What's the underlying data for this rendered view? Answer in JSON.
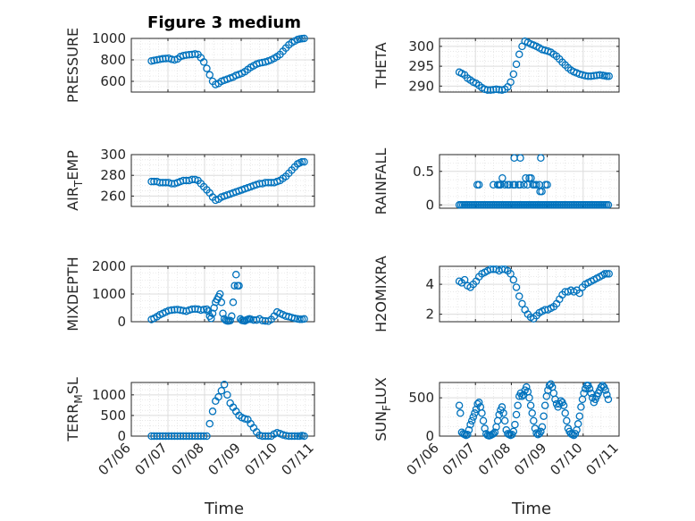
{
  "figure_title": "Figure 3 medium",
  "xlabel": "Time",
  "x_ticks": [
    "07/06",
    "07/07",
    "07/08",
    "07/09",
    "07/10",
    "07/11"
  ],
  "marker_color": "#0072BD",
  "chart_data": [
    {
      "type": "scatter",
      "ylabel": "PRESSURE",
      "ylabel_sub": "",
      "ylabel_rest": "",
      "ylim": [
        500,
        1000
      ],
      "yticks": [
        600,
        800,
        1000
      ],
      "xlim": [
        0,
        5
      ],
      "grid": true,
      "x": [
        0.55,
        0.62,
        0.7,
        0.78,
        0.86,
        0.94,
        1.02,
        1.1,
        1.18,
        1.26,
        1.34,
        1.42,
        1.5,
        1.58,
        1.66,
        1.74,
        1.82,
        1.9,
        1.98,
        2.06,
        2.14,
        2.22,
        2.3,
        2.38,
        2.46,
        2.54,
        2.62,
        2.7,
        2.78,
        2.86,
        2.94,
        3.02,
        3.1,
        3.18,
        3.26,
        3.34,
        3.42,
        3.5,
        3.58,
        3.66,
        3.74,
        3.82,
        3.9,
        3.98,
        4.06,
        4.14,
        4.22,
        4.3,
        4.38,
        4.46,
        4.54,
        4.6,
        4.66,
        4.72
      ],
      "y": [
        790,
        795,
        800,
        805,
        810,
        812,
        815,
        805,
        800,
        808,
        830,
        840,
        845,
        848,
        850,
        855,
        850,
        820,
        780,
        720,
        660,
        600,
        570,
        580,
        600,
        610,
        620,
        630,
        640,
        655,
        665,
        675,
        690,
        710,
        730,
        745,
        760,
        770,
        775,
        780,
        790,
        800,
        815,
        830,
        850,
        880,
        910,
        940,
        960,
        975,
        990,
        995,
        998,
        1000
      ]
    },
    {
      "type": "scatter",
      "ylabel": "THETA",
      "ylabel_sub": "",
      "ylabel_rest": "",
      "ylim": [
        288.5,
        302
      ],
      "yticks": [
        290,
        295,
        300
      ],
      "xlim": [
        0,
        5
      ],
      "grid": true,
      "x": [
        0.55,
        0.62,
        0.7,
        0.78,
        0.86,
        0.94,
        1.02,
        1.1,
        1.18,
        1.26,
        1.34,
        1.42,
        1.5,
        1.58,
        1.66,
        1.74,
        1.82,
        1.9,
        1.98,
        2.06,
        2.14,
        2.22,
        2.3,
        2.38,
        2.46,
        2.54,
        2.62,
        2.7,
        2.78,
        2.86,
        2.94,
        3.02,
        3.1,
        3.18,
        3.26,
        3.34,
        3.42,
        3.5,
        3.58,
        3.66,
        3.74,
        3.82,
        3.9,
        3.98,
        4.06,
        4.14,
        4.22,
        4.3,
        4.38,
        4.46,
        4.54,
        4.6,
        4.66,
        4.72
      ],
      "y": [
        293.5,
        293.2,
        292.8,
        292.0,
        291.5,
        291.0,
        290.7,
        290.2,
        289.6,
        289.2,
        289.0,
        289.0,
        289.1,
        289.2,
        289.1,
        289.0,
        289.2,
        289.8,
        291.0,
        293.0,
        295.5,
        298.0,
        300.0,
        301.3,
        301.0,
        300.6,
        300.3,
        300.0,
        299.6,
        299.2,
        299.0,
        298.8,
        298.5,
        298.0,
        297.5,
        296.8,
        296.0,
        295.3,
        294.6,
        294.0,
        293.6,
        293.3,
        293.0,
        292.8,
        292.6,
        292.5,
        292.5,
        292.6,
        292.7,
        292.8,
        292.7,
        292.6,
        292.5,
        292.5
      ]
    },
    {
      "type": "scatter",
      "ylabel": "AIR",
      "ylabel_sub": "T",
      "ylabel_rest": "EMP",
      "ylim": [
        250,
        300
      ],
      "yticks": [
        260,
        280,
        300
      ],
      "xlim": [
        0,
        5
      ],
      "grid": true,
      "x": [
        0.55,
        0.62,
        0.7,
        0.78,
        0.86,
        0.94,
        1.02,
        1.1,
        1.18,
        1.26,
        1.34,
        1.42,
        1.5,
        1.58,
        1.66,
        1.74,
        1.82,
        1.9,
        1.98,
        2.06,
        2.14,
        2.22,
        2.3,
        2.38,
        2.46,
        2.54,
        2.62,
        2.7,
        2.78,
        2.86,
        2.94,
        3.02,
        3.1,
        3.18,
        3.26,
        3.34,
        3.42,
        3.5,
        3.58,
        3.66,
        3.74,
        3.82,
        3.9,
        3.98,
        4.06,
        4.14,
        4.22,
        4.3,
        4.38,
        4.46,
        4.54,
        4.6,
        4.66,
        4.72
      ],
      "y": [
        274,
        274,
        274,
        273,
        273,
        273,
        273,
        272,
        272,
        273,
        274,
        275,
        275,
        275,
        276,
        276,
        275,
        272,
        269,
        266,
        263,
        259,
        256,
        257,
        259,
        260,
        261,
        262,
        263,
        264,
        265,
        266,
        267,
        268,
        269,
        270,
        271,
        272,
        272,
        273,
        273,
        273,
        273,
        274,
        275,
        277,
        279,
        282,
        285,
        288,
        291,
        292,
        293,
        293
      ]
    },
    {
      "type": "scatter",
      "ylabel": "RAINFALL",
      "ylabel_sub": "",
      "ylabel_rest": "",
      "ylim": [
        -0.05,
        0.75
      ],
      "yticks": [
        0,
        0.5
      ],
      "xlim": [
        0,
        5
      ],
      "grid": true,
      "x": [
        0.55,
        0.6,
        0.65,
        0.7,
        0.75,
        0.8,
        0.85,
        0.9,
        0.95,
        1.0,
        1.05,
        1.1,
        1.15,
        1.2,
        1.25,
        1.3,
        1.35,
        1.4,
        1.45,
        1.5,
        1.55,
        1.6,
        1.65,
        1.7,
        1.75,
        1.8,
        1.85,
        1.9,
        1.95,
        2.0,
        2.05,
        2.1,
        2.15,
        2.2,
        2.25,
        2.3,
        2.35,
        2.4,
        2.45,
        2.5,
        2.55,
        2.6,
        2.65,
        2.7,
        2.75,
        2.8,
        2.85,
        2.9,
        2.95,
        3.0,
        3.05,
        3.1,
        3.15,
        3.2,
        3.25,
        3.3,
        3.35,
        3.4,
        3.45,
        3.5,
        3.55,
        3.6,
        3.65,
        3.7,
        3.75,
        3.8,
        3.85,
        3.9,
        3.95,
        4.0,
        4.05,
        4.1,
        4.15,
        4.2,
        4.25,
        4.3,
        4.35,
        4.4,
        4.45,
        4.5,
        4.55,
        4.6,
        4.65,
        4.7,
        1.05,
        1.1,
        1.5,
        1.62,
        1.66,
        1.7,
        1.75,
        1.82,
        1.9,
        1.95,
        2.05,
        2.1,
        2.2,
        2.25,
        2.35,
        2.45,
        2.5,
        2.55,
        2.6,
        2.65,
        2.7,
        2.78,
        2.8,
        2.85,
        2.95,
        3.0,
        2.08,
        2.25,
        2.82,
        1.7,
        2.4
      ],
      "y": [
        0,
        0,
        0,
        0,
        0,
        0,
        0,
        0,
        0,
        0,
        0,
        0,
        0,
        0,
        0,
        0,
        0,
        0,
        0,
        0,
        0,
        0,
        0,
        0,
        0,
        0,
        0,
        0,
        0,
        0,
        0,
        0,
        0,
        0,
        0,
        0,
        0,
        0,
        0,
        0,
        0,
        0,
        0,
        0,
        0,
        0,
        0,
        0,
        0,
        0,
        0,
        0,
        0,
        0,
        0,
        0,
        0,
        0,
        0,
        0,
        0,
        0,
        0,
        0,
        0,
        0,
        0,
        0,
        0,
        0,
        0,
        0,
        0,
        0,
        0,
        0,
        0,
        0,
        0,
        0,
        0,
        0,
        0,
        0,
        0.3,
        0.3,
        0.3,
        0.3,
        0.3,
        0.3,
        0.4,
        0.3,
        0.3,
        0.3,
        0.3,
        0.3,
        0.3,
        0.3,
        0.3,
        0.3,
        0.4,
        0.4,
        0.3,
        0.3,
        0.3,
        0.3,
        0.2,
        0.2,
        0.3,
        0.3,
        0.7,
        0.7,
        0.7,
        0.3,
        0.4
      ]
    },
    {
      "type": "scatter",
      "ylabel": "MIXDEPTH",
      "ylabel_sub": "",
      "ylabel_rest": "",
      "ylim": [
        0,
        2000
      ],
      "yticks": [
        0,
        1000,
        2000
      ],
      "xlim": [
        0,
        5
      ],
      "grid": true,
      "x": [
        0.55,
        0.62,
        0.7,
        0.78,
        0.86,
        0.94,
        1.02,
        1.1,
        1.18,
        1.26,
        1.34,
        1.42,
        1.5,
        1.58,
        1.66,
        1.74,
        1.82,
        1.9,
        1.98,
        2.06,
        2.1,
        2.14,
        2.18,
        2.22,
        2.26,
        2.3,
        2.34,
        2.38,
        2.42,
        2.46,
        2.5,
        2.54,
        2.58,
        2.62,
        2.66,
        2.7,
        2.74,
        2.78,
        2.82,
        2.86,
        2.9,
        2.94,
        2.98,
        3.02,
        3.06,
        3.1,
        3.14,
        3.18,
        3.22,
        3.26,
        3.34,
        3.42,
        3.5,
        3.58,
        3.66,
        3.74,
        3.82,
        3.9,
        3.98,
        4.06,
        4.14,
        4.22,
        4.3,
        4.38,
        4.46,
        4.54,
        4.6,
        4.66,
        4.72
      ],
      "y": [
        80,
        120,
        180,
        250,
        300,
        350,
        400,
        420,
        430,
        440,
        420,
        400,
        380,
        420,
        450,
        460,
        450,
        420,
        440,
        450,
        380,
        200,
        120,
        300,
        500,
        700,
        800,
        900,
        1000,
        700,
        300,
        100,
        50,
        30,
        30,
        40,
        200,
        700,
        1300,
        1700,
        1300,
        1300,
        100,
        50,
        40,
        30,
        60,
        80,
        100,
        90,
        60,
        60,
        100,
        40,
        30,
        20,
        80,
        200,
        350,
        300,
        250,
        200,
        180,
        150,
        120,
        100,
        90,
        90,
        100
      ]
    },
    {
      "type": "scatter",
      "ylabel": "H2OMIXRA",
      "ylabel_sub": "",
      "ylabel_rest": "",
      "ylim": [
        1.5,
        5.2
      ],
      "yticks": [
        2,
        4
      ],
      "xlim": [
        0,
        5
      ],
      "grid": true,
      "x": [
        0.55,
        0.62,
        0.7,
        0.78,
        0.86,
        0.94,
        1.02,
        1.1,
        1.18,
        1.26,
        1.34,
        1.42,
        1.5,
        1.58,
        1.66,
        1.74,
        1.82,
        1.9,
        1.98,
        2.06,
        2.14,
        2.22,
        2.3,
        2.38,
        2.46,
        2.54,
        2.62,
        2.7,
        2.78,
        2.86,
        2.94,
        3.02,
        3.1,
        3.18,
        3.26,
        3.34,
        3.42,
        3.5,
        3.58,
        3.66,
        3.74,
        3.82,
        3.9,
        3.98,
        4.06,
        4.14,
        4.22,
        4.3,
        4.38,
        4.46,
        4.54,
        4.6,
        4.66,
        4.72
      ],
      "y": [
        4.2,
        4.1,
        4.3,
        3.9,
        3.8,
        4.0,
        4.2,
        4.5,
        4.7,
        4.8,
        4.9,
        5.0,
        5.0,
        5.0,
        4.9,
        5.0,
        5.0,
        4.9,
        4.7,
        4.3,
        3.8,
        3.2,
        2.7,
        2.3,
        2.0,
        1.8,
        1.7,
        1.9,
        2.1,
        2.2,
        2.3,
        2.3,
        2.4,
        2.5,
        2.7,
        3.0,
        3.3,
        3.5,
        3.5,
        3.6,
        3.5,
        3.6,
        3.4,
        3.8,
        4.0,
        4.1,
        4.2,
        4.3,
        4.4,
        4.5,
        4.6,
        4.7,
        4.7,
        4.7
      ]
    },
    {
      "type": "scatter",
      "ylabel": "TERR",
      "ylabel_sub": "M",
      "ylabel_rest": "SL",
      "ylim": [
        0,
        1300
      ],
      "yticks": [
        0,
        500,
        1000
      ],
      "xlim": [
        0,
        5
      ],
      "grid": true,
      "x": [
        0.55,
        0.62,
        0.7,
        0.78,
        0.86,
        0.94,
        1.02,
        1.1,
        1.18,
        1.26,
        1.34,
        1.42,
        1.5,
        1.58,
        1.66,
        1.74,
        1.82,
        1.9,
        1.98,
        2.06,
        2.14,
        2.22,
        2.3,
        2.38,
        2.46,
        2.54,
        2.62,
        2.7,
        2.78,
        2.86,
        2.94,
        3.02,
        3.1,
        3.18,
        3.26,
        3.34,
        3.42,
        3.5,
        3.58,
        3.66,
        3.74,
        3.82,
        3.9,
        3.98,
        4.06,
        4.14,
        4.22,
        4.3,
        4.38,
        4.46,
        4.54,
        4.6,
        4.66,
        4.72
      ],
      "y": [
        0,
        0,
        0,
        0,
        0,
        0,
        0,
        0,
        0,
        0,
        0,
        0,
        0,
        0,
        0,
        0,
        0,
        0,
        0,
        0,
        300,
        600,
        850,
        950,
        1100,
        1250,
        1000,
        800,
        700,
        600,
        500,
        450,
        420,
        400,
        300,
        200,
        100,
        20,
        0,
        0,
        0,
        0,
        50,
        80,
        60,
        30,
        10,
        0,
        0,
        0,
        0,
        0,
        10,
        0
      ]
    },
    {
      "type": "scatter",
      "ylabel": "SUN",
      "ylabel_sub": "F",
      "ylabel_rest": "LUX",
      "ylim": [
        0,
        700
      ],
      "yticks": [
        0,
        500
      ],
      "xlim": [
        0,
        5
      ],
      "grid": true,
      "x": [
        0.55,
        0.58,
        0.62,
        0.66,
        0.7,
        0.74,
        0.78,
        0.82,
        0.86,
        0.9,
        0.94,
        0.98,
        1.02,
        1.06,
        1.1,
        1.14,
        1.18,
        1.22,
        1.26,
        1.3,
        1.34,
        1.38,
        1.42,
        1.46,
        1.5,
        1.54,
        1.58,
        1.62,
        1.66,
        1.7,
        1.74,
        1.78,
        1.82,
        1.86,
        1.9,
        1.94,
        1.98,
        2.02,
        2.06,
        2.1,
        2.14,
        2.18,
        2.22,
        2.26,
        2.3,
        2.34,
        2.38,
        2.42,
        2.46,
        2.5,
        2.54,
        2.58,
        2.62,
        2.66,
        2.7,
        2.74,
        2.78,
        2.82,
        2.86,
        2.9,
        2.94,
        2.98,
        3.02,
        3.06,
        3.1,
        3.14,
        3.18,
        3.22,
        3.26,
        3.3,
        3.34,
        3.38,
        3.42,
        3.46,
        3.5,
        3.54,
        3.58,
        3.62,
        3.66,
        3.7,
        3.74,
        3.78,
        3.82,
        3.86,
        3.9,
        3.94,
        3.98,
        4.02,
        4.06,
        4.1,
        4.14,
        4.18,
        4.22,
        4.26,
        4.3,
        4.34,
        4.38,
        4.42,
        4.46,
        4.5,
        4.54,
        4.58,
        4.62,
        4.66,
        4.7
      ],
      "y": [
        400,
        300,
        50,
        30,
        20,
        10,
        20,
        80,
        150,
        200,
        250,
        300,
        350,
        420,
        440,
        380,
        300,
        200,
        100,
        30,
        10,
        5,
        10,
        20,
        30,
        50,
        120,
        200,
        280,
        340,
        380,
        300,
        200,
        80,
        30,
        20,
        10,
        20,
        60,
        150,
        280,
        400,
        520,
        560,
        520,
        540,
        600,
        640,
        580,
        500,
        400,
        300,
        200,
        100,
        40,
        20,
        30,
        60,
        120,
        260,
        400,
        520,
        600,
        660,
        680,
        640,
        560,
        480,
        420,
        380,
        420,
        460,
        440,
        400,
        300,
        200,
        100,
        60,
        30,
        20,
        10,
        30,
        80,
        160,
        260,
        380,
        480,
        560,
        620,
        660,
        660,
        620,
        560,
        500,
        440,
        480,
        520,
        560,
        600,
        640,
        660,
        640,
        600,
        540,
        480
      ]
    }
  ]
}
